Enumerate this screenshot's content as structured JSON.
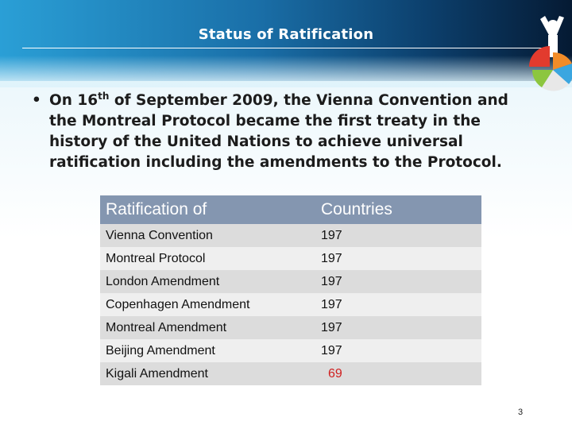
{
  "slide": {
    "title": "Status of Ratification",
    "bullet_marker": "•",
    "bullet_pre": "On 16",
    "bullet_sup": "th",
    "bullet_post": " of September 2009, the Vienna Convention and the Montreal Protocol became the first treaty in the history of the United Nations to achieve universal ratification including the amendments to the Protocol.",
    "page_number": "3"
  },
  "table": {
    "headers": [
      "Ratification of",
      "Countries"
    ],
    "rows": [
      {
        "name": "Vienna Convention",
        "count": "197"
      },
      {
        "name": "Montreal Protocol",
        "count": "197"
      },
      {
        "name": "London Amendment",
        "count": "197"
      },
      {
        "name": "Copenhagen Amendment",
        "count": "197"
      },
      {
        "name": "Montreal Amendment",
        "count": "197"
      },
      {
        "name": "Beijing Amendment",
        "count": "197"
      },
      {
        "name": "Kigali Amendment",
        "count": "69"
      }
    ]
  },
  "colors": {
    "header_band": "#1a6fa8",
    "table_header": "#8496b0",
    "highlight_count": "#d02020"
  },
  "icons": [
    "pie-chart-person-logo"
  ]
}
